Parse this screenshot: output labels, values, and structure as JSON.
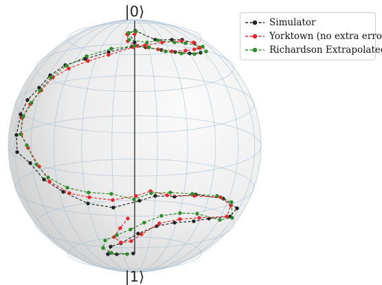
{
  "chart_data": {
    "type": "scatter",
    "title": "",
    "labels": {
      "north_pole": "|0⟩",
      "south_pole": "|1⟩"
    },
    "legend_position": "top-right",
    "series": [
      {
        "name": "Simulator",
        "color": "#222222",
        "points": [
          [
            196,
            62
          ],
          [
            187,
            48
          ],
          [
            197,
            45
          ],
          [
            226,
            58
          ],
          [
            250,
            58
          ],
          [
            265,
            58
          ],
          [
            283,
            63
          ],
          [
            292,
            77
          ],
          [
            276,
            78
          ],
          [
            255,
            76
          ],
          [
            235,
            73
          ],
          [
            212,
            69
          ],
          [
            192,
            68
          ],
          [
            158,
            76
          ],
          [
            124,
            86
          ],
          [
            95,
            95
          ],
          [
            73,
            110
          ],
          [
            57,
            128
          ],
          [
            40,
            146
          ],
          [
            30,
            167
          ],
          [
            24,
            197
          ],
          [
            25,
            222
          ],
          [
            44,
            238
          ],
          [
            64,
            262
          ],
          [
            92,
            280
          ],
          [
            128,
            297
          ],
          [
            165,
            303
          ],
          [
            203,
            293
          ],
          [
            226,
            286
          ],
          [
            254,
            287
          ],
          [
            285,
            284
          ],
          [
            325,
            290
          ],
          [
            345,
            304
          ],
          [
            335,
            316
          ],
          [
            304,
            319
          ],
          [
            282,
            323
          ],
          [
            254,
            325
          ],
          [
            228,
            330
          ],
          [
            201,
            341
          ],
          [
            176,
            355
          ],
          [
            161,
            360
          ],
          [
            157,
            371
          ],
          [
            170,
            371
          ],
          [
            194,
            370
          ]
        ]
      },
      {
        "name": "Yorktown (no extra error)",
        "color": "#e3262b",
        "points": [
          [
            196,
            50
          ],
          [
            185,
            50
          ],
          [
            186,
            60
          ],
          [
            200,
            67
          ],
          [
            215,
            69
          ],
          [
            230,
            72
          ],
          [
            250,
            75
          ],
          [
            270,
            74
          ],
          [
            283,
            72
          ],
          [
            291,
            70
          ],
          [
            282,
            62
          ],
          [
            264,
            60
          ],
          [
            236,
            62
          ],
          [
            211,
            66
          ],
          [
            194,
            69
          ],
          [
            158,
            80
          ],
          [
            128,
            89
          ],
          [
            100,
            100
          ],
          [
            77,
            113
          ],
          [
            60,
            132
          ],
          [
            44,
            152
          ],
          [
            32,
            172
          ],
          [
            31,
            196
          ],
          [
            41,
            216
          ],
          [
            57,
            243
          ],
          [
            72,
            265
          ],
          [
            101,
            282
          ],
          [
            130,
            288
          ],
          [
            164,
            292
          ],
          [
            198,
            286
          ],
          [
            219,
            279
          ],
          [
            243,
            285
          ],
          [
            283,
            286
          ],
          [
            321,
            288
          ],
          [
            336,
            300
          ],
          [
            330,
            316
          ],
          [
            290,
            318
          ],
          [
            262,
            320
          ],
          [
            232,
            326
          ],
          [
            206,
            342
          ],
          [
            191,
            352
          ],
          [
            176,
            354
          ],
          [
            166,
            346
          ],
          [
            175,
            333
          ],
          [
            186,
            319
          ]
        ]
      },
      {
        "name": "Richardson Extrapolated",
        "color": "#2f8a2a",
        "points": [
          [
            198,
            46
          ],
          [
            187,
            48
          ],
          [
            188,
            58
          ],
          [
            214,
            62
          ],
          [
            230,
            59
          ],
          [
            254,
            62
          ],
          [
            270,
            63
          ],
          [
            295,
            68
          ],
          [
            300,
            75
          ],
          [
            283,
            79
          ],
          [
            264,
            78
          ],
          [
            241,
            75
          ],
          [
            217,
            69
          ],
          [
            196,
            67
          ],
          [
            162,
            71
          ],
          [
            126,
            82
          ],
          [
            97,
            96
          ],
          [
            74,
            113
          ],
          [
            58,
            132
          ],
          [
            46,
            150
          ],
          [
            34,
            170
          ],
          [
            30,
            196
          ],
          [
            39,
            212
          ],
          [
            53,
            240
          ],
          [
            70,
            259
          ],
          [
            98,
            274
          ],
          [
            129,
            281
          ],
          [
            162,
            283
          ],
          [
            195,
            291
          ],
          [
            220,
            282
          ],
          [
            248,
            281
          ],
          [
            280,
            283
          ],
          [
            316,
            286
          ],
          [
            337,
            295
          ],
          [
            338,
            318
          ],
          [
            320,
            321
          ],
          [
            287,
            312
          ],
          [
            262,
            311
          ],
          [
            235,
            315
          ],
          [
            210,
            325
          ],
          [
            190,
            335
          ],
          [
            170,
            343
          ],
          [
            153,
            351
          ],
          [
            150,
            362
          ],
          [
            162,
            369
          ],
          [
            185,
            371
          ]
        ]
      }
    ]
  }
}
